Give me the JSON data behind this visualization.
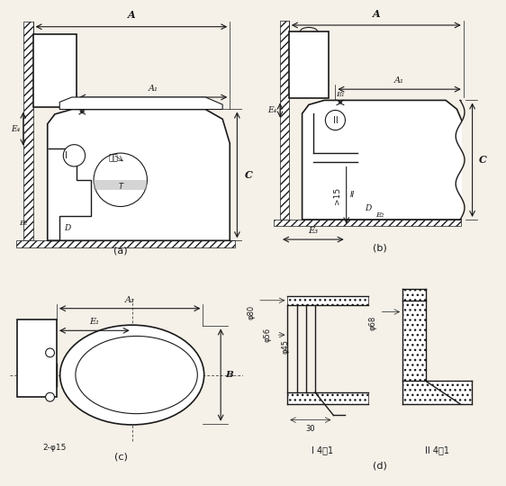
{
  "bg_color": "#f5f0e8",
  "line_color": "#1a1a1a",
  "title": "",
  "fig_labels": [
    "(a)",
    "(b)",
    "(c)",
    "(d)"
  ],
  "hatch_color": "#1a1a1a"
}
